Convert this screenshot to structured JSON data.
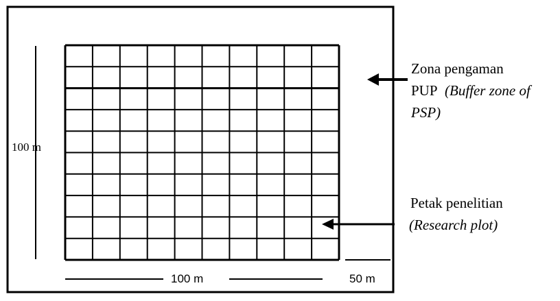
{
  "grid": {
    "rows": 10,
    "cols": 10
  },
  "labels": {
    "left_dimension": "100 m",
    "bottom_dimension": "100 m",
    "buffer_dimension": "50 m"
  },
  "annotations": {
    "buffer_zone": {
      "line1": "Zona pengaman",
      "line2_plain": "PUP",
      "line2_italic": "(Buffer zone of",
      "line3_italic": "PSP)"
    },
    "research_plot": {
      "line1": "Petak penelitian",
      "line2_italic": "(Research plot)"
    }
  },
  "colors": {
    "line": "#000000",
    "background": "#ffffff"
  }
}
